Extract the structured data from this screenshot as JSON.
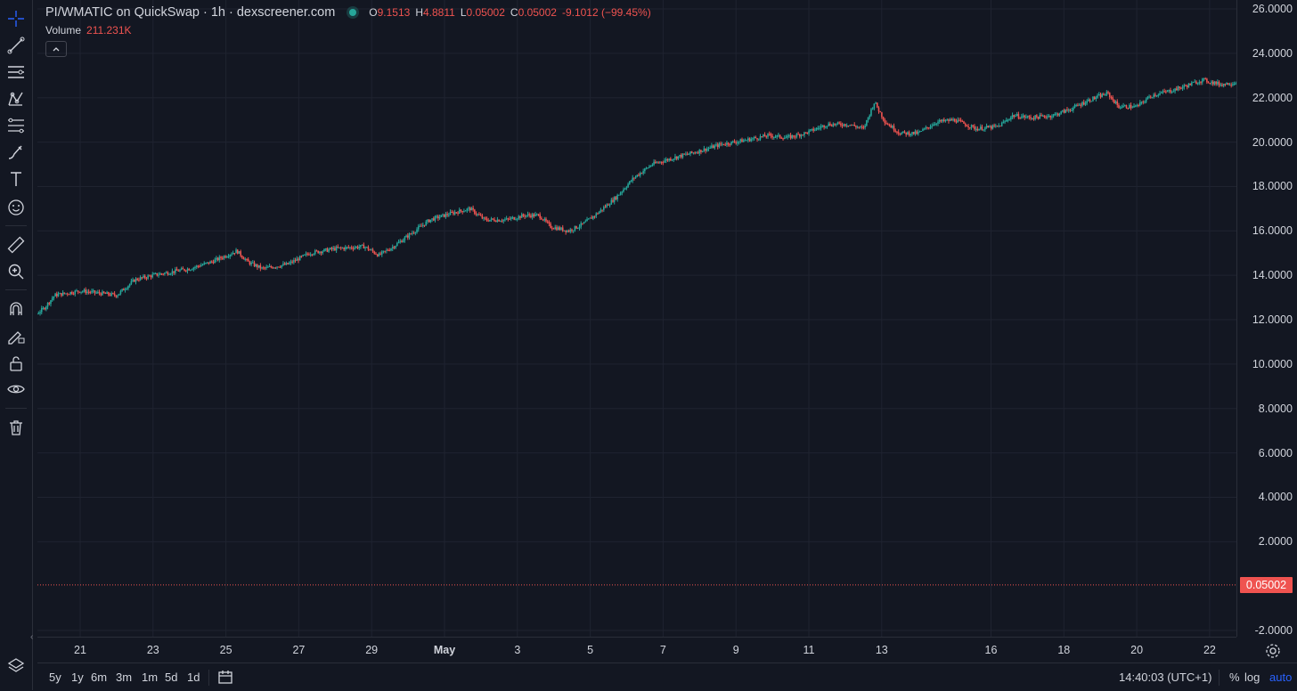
{
  "legend": {
    "title": "PI/WMATIC on QuickSwap · 1h · dexscreener.com",
    "open_label": "O",
    "open": "9.1513",
    "high_label": "H",
    "high": "4.8811",
    "low_label": "L",
    "low": "0.05002",
    "close_label": "C",
    "close": "0.05002",
    "change": "-9.1012 (−99.45%)"
  },
  "volume": {
    "label": "Volume",
    "value": "211.231K"
  },
  "last_price": "0.05002",
  "price_axis": [
    "26.0000",
    "24.0000",
    "22.0000",
    "20.0000",
    "18.0000",
    "16.0000",
    "14.0000",
    "12.0000",
    "10.0000",
    "8.0000",
    "6.0000",
    "4.0000",
    "2.0000",
    "-2.0000"
  ],
  "time_axis": [
    "21",
    "23",
    "25",
    "27",
    "29",
    "May",
    "3",
    "5",
    "7",
    "9",
    "11",
    "13",
    "16",
    "18",
    "20",
    "22"
  ],
  "ranges": [
    "5y",
    "1y",
    "6m",
    "3m",
    "1m",
    "5d",
    "1d"
  ],
  "bottom": {
    "time": "14:40:03 (UTC+1)",
    "pct": "%",
    "log": "log",
    "auto": "auto"
  },
  "colors": {
    "up": "#26a69a",
    "down": "#ef5350",
    "background": "#131722",
    "grid": "#1f2330",
    "accent": "#2962ff"
  },
  "toolbar_icons": [
    "crosshair-icon",
    "trend-line-icon",
    "horizontal-lines-icon",
    "pattern-icon",
    "fib-icon",
    "brush-icon",
    "text-icon",
    "emoji-icon",
    "ruler-icon",
    "zoom-in-icon",
    "magnet-icon",
    "pencil-lock-icon",
    "unlock-icon",
    "eye-icon",
    "trash-icon"
  ],
  "chart_data": {
    "type": "candlestick",
    "title": "PI/WMATIC on QuickSwap · 1h · dexscreener.com",
    "ylim": [
      -2.3,
      26.2
    ],
    "x_ticks": [
      "21",
      "23",
      "25",
      "27",
      "29",
      "May",
      "3",
      "5",
      "7",
      "9",
      "11",
      "13",
      "16",
      "18",
      "20",
      "22"
    ],
    "close_path": [
      [
        "20",
        11.5
      ],
      [
        "21",
        13.2
      ],
      [
        "22",
        13.3
      ],
      [
        "23",
        14.0
      ],
      [
        "24",
        14.5
      ],
      [
        "24.5",
        15.1
      ],
      [
        "25",
        14.3
      ],
      [
        "26",
        15.0
      ],
      [
        "27",
        15.3
      ],
      [
        "27.5",
        15.8
      ],
      [
        "28",
        16.5
      ],
      [
        "29",
        17.0
      ],
      [
        "29.5",
        16.6
      ],
      [
        "30",
        16.0
      ],
      [
        "May 1",
        16.8
      ],
      [
        "May 2",
        19.0
      ],
      [
        "May 3",
        19.5
      ],
      [
        "May 4",
        20.2
      ],
      [
        "May 5",
        20.3
      ],
      [
        "May 6",
        20.7
      ],
      [
        "May 6.5",
        21.8
      ],
      [
        "May 7",
        20.4
      ],
      [
        "May 8",
        20.8
      ],
      [
        "May 9",
        20.9
      ],
      [
        "May 10",
        21.5
      ],
      [
        "May 11",
        21.6
      ],
      [
        "May 12",
        22.6
      ],
      [
        "May 13",
        23.0
      ],
      [
        "May 13.5",
        23.4
      ],
      [
        "May 13.8",
        0.05
      ]
    ],
    "last_candle": {
      "open": 9.1513,
      "high": 4.8811,
      "low": 0.05002,
      "close": 0.05002
    },
    "volume": "211.231K",
    "grid": true
  }
}
